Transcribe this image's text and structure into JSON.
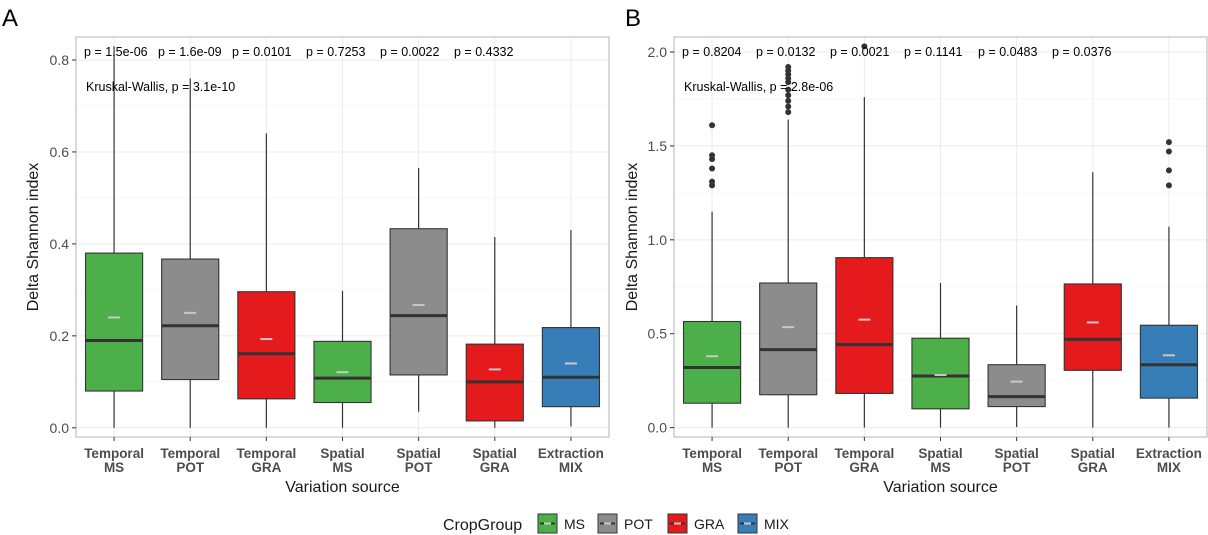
{
  "colors": {
    "MS": "#4daf4a",
    "POT": "#8c8c8c",
    "GRA": "#e41a1c",
    "MIX": "#377eb8",
    "median": "#333333",
    "mean": "#c8c8c8",
    "whisker": "#333333",
    "grid": "#ebebeb",
    "border": "#b3b3b3"
  },
  "legend": {
    "title": "CropGroup",
    "items": [
      {
        "key": "MS",
        "label": "MS"
      },
      {
        "key": "POT",
        "label": "POT"
      },
      {
        "key": "GRA",
        "label": "GRA"
      },
      {
        "key": "MIX",
        "label": "MIX"
      }
    ]
  },
  "chart_data": [
    {
      "type": "box",
      "panel_label": "A",
      "xlabel": "Variation source",
      "ylabel": "Delta Shannon index",
      "ylim": [
        -0.02,
        0.85
      ],
      "yticks": [
        0.0,
        0.2,
        0.4,
        0.6,
        0.8
      ],
      "ytick_labels": [
        "0.0",
        "0.2",
        "0.4",
        "0.6",
        "0.8"
      ],
      "kruskal": "Kruskal-Wallis, p = 3.1e-10",
      "pvalues": [
        "p = 1.5e-06",
        "p = 1.6e-09",
        "p = 0.0101",
        "p = 0.7253",
        "p = 0.0022",
        "p = 0.4332"
      ],
      "categories": [
        {
          "line1": "Temporal",
          "line2": "MS",
          "group": "MS",
          "min": 0.0,
          "q1": 0.08,
          "median": 0.19,
          "q3": 0.38,
          "max": 0.83,
          "mean": 0.24,
          "outliers": []
        },
        {
          "line1": "Temporal",
          "line2": "POT",
          "group": "POT",
          "min": 0.0,
          "q1": 0.105,
          "median": 0.222,
          "q3": 0.367,
          "max": 0.76,
          "mean": 0.25,
          "outliers": []
        },
        {
          "line1": "Temporal",
          "line2": "GRA",
          "group": "GRA",
          "min": 0.0,
          "q1": 0.063,
          "median": 0.161,
          "q3": 0.296,
          "max": 0.64,
          "mean": 0.193,
          "outliers": []
        },
        {
          "line1": "Spatial",
          "line2": "MS",
          "group": "MS",
          "min": 0.0,
          "q1": 0.055,
          "median": 0.108,
          "q3": 0.188,
          "max": 0.298,
          "mean": 0.121,
          "outliers": []
        },
        {
          "line1": "Spatial",
          "line2": "POT",
          "group": "POT",
          "min": 0.035,
          "q1": 0.115,
          "median": 0.244,
          "q3": 0.433,
          "max": 0.565,
          "mean": 0.267,
          "outliers": []
        },
        {
          "line1": "Spatial",
          "line2": "GRA",
          "group": "GRA",
          "min": 0.0,
          "q1": 0.015,
          "median": 0.1,
          "q3": 0.182,
          "max": 0.415,
          "mean": 0.127,
          "outliers": []
        },
        {
          "line1": "Extraction",
          "line2": "MIX",
          "group": "MIX",
          "min": 0.003,
          "q1": 0.046,
          "median": 0.11,
          "q3": 0.218,
          "max": 0.43,
          "mean": 0.14,
          "outliers": []
        }
      ]
    },
    {
      "type": "box",
      "panel_label": "B",
      "xlabel": "Variation source",
      "ylabel": "Delta Shannon index",
      "ylim": [
        -0.05,
        2.08
      ],
      "yticks": [
        0.0,
        0.5,
        1.0,
        1.5,
        2.0
      ],
      "ytick_labels": [
        "0.0",
        "0.5",
        "1.0",
        "1.5",
        "2.0"
      ],
      "kruskal": "Kruskal-Wallis, p = 2.8e-06",
      "pvalues": [
        "p = 0.8204",
        "p = 0.0132",
        "p = 0.0021",
        "p = 0.1141",
        "p = 0.0483",
        "p = 0.0376"
      ],
      "categories": [
        {
          "line1": "Temporal",
          "line2": "MS",
          "group": "MS",
          "min": 0.0,
          "q1": 0.13,
          "median": 0.32,
          "q3": 0.565,
          "max": 1.15,
          "mean": 0.38,
          "outliers": [
            1.29,
            1.31,
            1.38,
            1.43,
            1.45,
            1.61
          ]
        },
        {
          "line1": "Temporal",
          "line2": "POT",
          "group": "POT",
          "min": 0.0,
          "q1": 0.175,
          "median": 0.415,
          "q3": 0.77,
          "max": 1.64,
          "mean": 0.535,
          "outliers": [
            1.68,
            1.71,
            1.74,
            1.77,
            1.8,
            1.84,
            1.86,
            1.88,
            1.9,
            1.92
          ]
        },
        {
          "line1": "Temporal",
          "line2": "GRA",
          "group": "GRA",
          "min": 0.0,
          "q1": 0.182,
          "median": 0.442,
          "q3": 0.905,
          "max": 1.76,
          "mean": 0.575,
          "outliers": [
            2.03
          ]
        },
        {
          "line1": "Spatial",
          "line2": "MS",
          "group": "MS",
          "min": 0.0,
          "q1": 0.1,
          "median": 0.275,
          "q3": 0.476,
          "max": 0.77,
          "mean": 0.28,
          "outliers": []
        },
        {
          "line1": "Spatial",
          "line2": "POT",
          "group": "POT",
          "min": 0.003,
          "q1": 0.112,
          "median": 0.165,
          "q3": 0.335,
          "max": 0.65,
          "mean": 0.245,
          "outliers": []
        },
        {
          "line1": "Spatial",
          "line2": "GRA",
          "group": "GRA",
          "min": 0.0,
          "q1": 0.305,
          "median": 0.47,
          "q3": 0.765,
          "max": 1.36,
          "mean": 0.56,
          "outliers": []
        },
        {
          "line1": "Extraction",
          "line2": "MIX",
          "group": "MIX",
          "min": 0.0,
          "q1": 0.157,
          "median": 0.335,
          "q3": 0.545,
          "max": 1.07,
          "mean": 0.385,
          "outliers": [
            1.29,
            1.37,
            1.47,
            1.52
          ]
        }
      ]
    }
  ]
}
